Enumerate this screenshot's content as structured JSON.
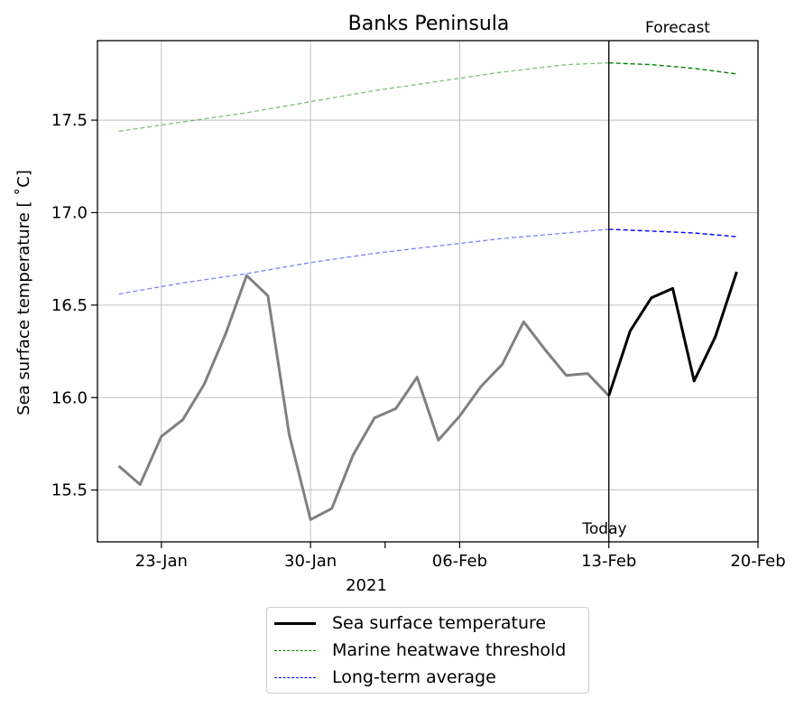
{
  "chart_data": {
    "type": "line",
    "title": "Banks Peninsula",
    "ylabel": "Sea surface temperature [$^\\circ$C]",
    "ylabel_display": "Sea surface temperature [ ˚C]",
    "xlabel_year": "2021",
    "x_ticks": [
      "23-Jan",
      "30-Jan",
      "06-Feb",
      "13-Feb",
      "20-Feb"
    ],
    "y_ticks": [
      "15.5",
      "16.0",
      "16.5",
      "17.0",
      "17.5"
    ],
    "ylim": [
      15.22,
      17.93
    ],
    "xlim": [
      "2021-01-20",
      "2021-02-20"
    ],
    "grid": true,
    "annotations": {
      "today": "Today",
      "forecast": "Forecast"
    },
    "today": "2021-02-13",
    "series": [
      {
        "name": "Sea surface temperature",
        "color": "#000000",
        "style": "solid",
        "history_color": "#808080",
        "x": [
          "2021-01-21",
          "2021-01-22",
          "2021-01-23",
          "2021-01-24",
          "2021-01-25",
          "2021-01-26",
          "2021-01-27",
          "2021-01-28",
          "2021-01-29",
          "2021-01-30",
          "2021-01-31",
          "2021-02-01",
          "2021-02-02",
          "2021-02-03",
          "2021-02-04",
          "2021-02-05",
          "2021-02-06",
          "2021-02-07",
          "2021-02-08",
          "2021-02-09",
          "2021-02-10",
          "2021-02-11",
          "2021-02-12",
          "2021-02-13",
          "2021-02-14",
          "2021-02-15",
          "2021-02-16",
          "2021-02-17",
          "2021-02-18",
          "2021-02-19"
        ],
        "values": [
          15.63,
          15.53,
          15.79,
          15.88,
          16.07,
          16.34,
          16.66,
          16.55,
          15.8,
          15.34,
          15.4,
          15.69,
          15.89,
          15.94,
          16.11,
          15.77,
          15.9,
          16.06,
          16.18,
          16.41,
          16.26,
          16.12,
          16.13,
          16.01,
          16.36,
          16.54,
          16.59,
          16.09,
          16.33,
          16.68
        ]
      },
      {
        "name": "Marine heatwave threshold",
        "color": "#008000",
        "style": "dashed",
        "x": [
          "2021-01-21",
          "2021-01-24",
          "2021-01-27",
          "2021-01-30",
          "2021-02-02",
          "2021-02-05",
          "2021-02-08",
          "2021-02-11",
          "2021-02-13",
          "2021-02-15",
          "2021-02-17",
          "2021-02-19"
        ],
        "values": [
          17.44,
          17.49,
          17.54,
          17.6,
          17.66,
          17.71,
          17.76,
          17.8,
          17.81,
          17.8,
          17.78,
          17.75
        ]
      },
      {
        "name": "Long-term average",
        "color": "#0000ff",
        "style": "dashed",
        "x": [
          "2021-01-21",
          "2021-01-24",
          "2021-01-27",
          "2021-01-30",
          "2021-02-02",
          "2021-02-05",
          "2021-02-08",
          "2021-02-11",
          "2021-02-13",
          "2021-02-15",
          "2021-02-17",
          "2021-02-19"
        ],
        "values": [
          16.56,
          16.62,
          16.67,
          16.73,
          16.78,
          16.82,
          16.86,
          16.89,
          16.91,
          16.9,
          16.89,
          16.87
        ]
      }
    ]
  }
}
